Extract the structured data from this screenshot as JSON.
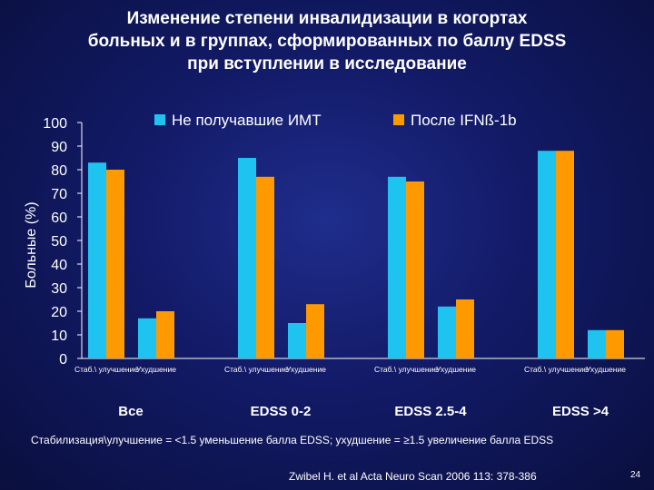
{
  "slide": {
    "title_lines": [
      "Изменение степени инвалидизации в когортах",
      "больных и в группах, сформированных по баллу EDSS",
      "при вступлении в исследование"
    ],
    "footnote": "Стабилизация\\улучшение = <1.5 уменьшение балла EDSS; ухудшение = ≥1.5 увеличение балла EDSS",
    "citation": "Zwibel H. et al Acta Neuro Scan 2006 113: 378-386",
    "page_number": "24"
  },
  "chart_data": {
    "type": "bar",
    "ylabel": "Больные (%)",
    "ylim": [
      0,
      100
    ],
    "yticks": [
      0,
      10,
      20,
      30,
      40,
      50,
      60,
      70,
      80,
      90,
      100
    ],
    "groups": [
      "Все",
      "EDSS 0-2",
      "EDSS 2.5-4",
      "EDSS >4"
    ],
    "categories": [
      "Стаб.\\ улучшение",
      "Ухудшение",
      "Стаб.\\ улучшение",
      "Ухудшение",
      "Стаб.\\ улучшение",
      "Ухудшение",
      "Стаб.\\ улучшение",
      "Ухудшение"
    ],
    "series": [
      {
        "name": "Не получавшие ИМТ",
        "color": "#1fc3f0",
        "values": [
          83,
          17,
          85,
          15,
          77,
          22,
          88,
          12
        ]
      },
      {
        "name": "После IFNß-1b",
        "color": "#ff9900",
        "values": [
          80,
          20,
          77,
          23,
          75,
          25,
          88,
          12
        ]
      }
    ],
    "legend_position": "top",
    "grid": false
  }
}
